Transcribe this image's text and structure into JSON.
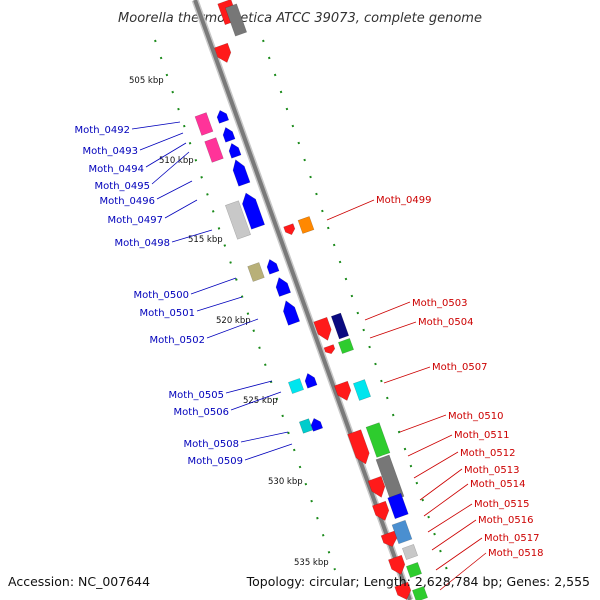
{
  "title": "Moorella thermoacetica ATCC 39073, complete genome",
  "footer": {
    "accession": "Accession: NC_007644",
    "topology": "Topology: circular; Length: 2,628,784 bp; Genes: 2,555"
  },
  "label_colors": {
    "forward": "#0000bb",
    "reverse": "#cc0000"
  },
  "kbp_labels": [
    "505 kbp",
    "510 kbp",
    "515 kbp",
    "520 kbp",
    "525 kbp",
    "530 kbp",
    "535 kbp"
  ],
  "forward_labels": [
    "Moth_0492",
    "Moth_0493",
    "Moth_0494",
    "Moth_0495",
    "Moth_0496",
    "Moth_0497",
    "Moth_0498",
    "Moth_0500",
    "Moth_0501",
    "Moth_0502",
    "Moth_0505",
    "Moth_0506",
    "Moth_0508",
    "Moth_0509"
  ],
  "reverse_labels": [
    "Moth_0499",
    "Moth_0503",
    "Moth_0504",
    "Moth_0507",
    "Moth_0510",
    "Moth_0511",
    "Moth_0512",
    "Moth_0513",
    "Moth_0514",
    "Moth_0515",
    "Moth_0516",
    "Moth_0517",
    "Moth_0518"
  ]
}
